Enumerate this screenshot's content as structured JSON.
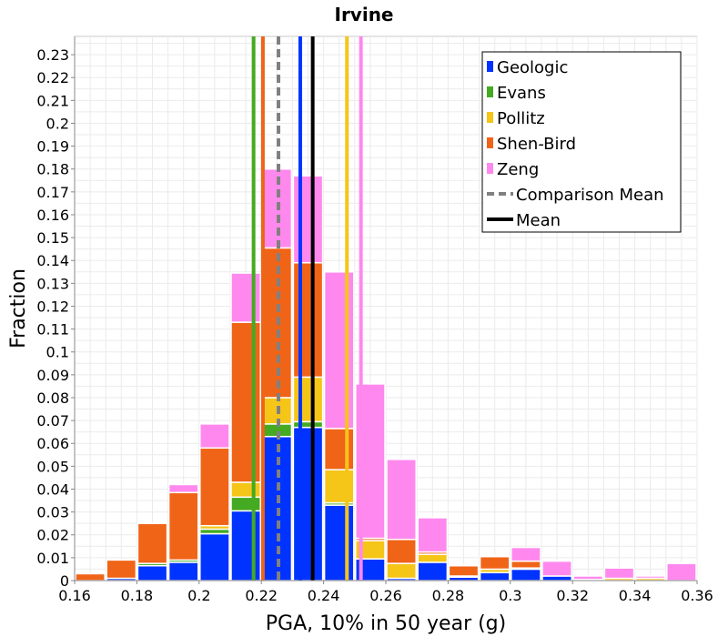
{
  "chart_data": {
    "type": "bar",
    "stacked": true,
    "title": "Irvine",
    "xlabel": "PGA, 10% in 50 year (g)",
    "ylabel": "Fraction",
    "xlim": [
      0.16,
      0.36
    ],
    "ylim": [
      0,
      0.238
    ],
    "grid": true,
    "legend_position": "top-right",
    "x_ticks": [
      "0.16",
      "0.18",
      "0.2",
      "0.22",
      "0.24",
      "0.26",
      "0.28",
      "0.3",
      "0.32",
      "0.34",
      "0.36"
    ],
    "y_ticks": [
      "0",
      "0.01",
      "0.02",
      "0.03",
      "0.04",
      "0.05",
      "0.06",
      "0.07",
      "0.08",
      "0.09",
      "0.1",
      "0.11",
      "0.12",
      "0.13",
      "0.14",
      "0.15",
      "0.16",
      "0.17",
      "0.18",
      "0.19",
      "0.2",
      "0.21",
      "0.22",
      "0.23"
    ],
    "bin_width": 0.01,
    "bin_centers": [
      0.165,
      0.175,
      0.185,
      0.195,
      0.205,
      0.215,
      0.225,
      0.235,
      0.245,
      0.255,
      0.265,
      0.275,
      0.285,
      0.295,
      0.305,
      0.315,
      0.325,
      0.335,
      0.345,
      0.355
    ],
    "series": [
      {
        "name": "Geologic",
        "color": "#0033ff",
        "values": [
          0,
          0.001,
          0.0065,
          0.008,
          0.0205,
          0.0305,
          0.063,
          0.067,
          0.033,
          0.0095,
          0.001,
          0.008,
          0.0015,
          0.0035,
          0.005,
          0.002,
          0,
          0,
          0,
          0
        ]
      },
      {
        "name": "Evans",
        "color": "#44aa22",
        "values": [
          0,
          0,
          0.001,
          0.001,
          0.002,
          0.006,
          0.0055,
          0.0025,
          0.001,
          0,
          0,
          0,
          0,
          0,
          0,
          0,
          0,
          0,
          0,
          0
        ]
      },
      {
        "name": "Pollitz",
        "color": "#f5c518",
        "values": [
          0,
          0,
          0,
          0,
          0.0015,
          0.0065,
          0.0115,
          0.0195,
          0.0145,
          0.008,
          0.0065,
          0.0035,
          0.0005,
          0.0015,
          0.0005,
          0,
          0.0005,
          0.001,
          0.001,
          0
        ],
        "_n": 0
      },
      {
        "name": "Shen-Bird",
        "color": "#f06418",
        "values": [
          0.003,
          0.008,
          0.0175,
          0.0295,
          0.034,
          0.07,
          0.0655,
          0.05,
          0.018,
          0.001,
          0.0105,
          0.001,
          0.0045,
          0.0055,
          0.003,
          0,
          0,
          0,
          0,
          0
        ]
      },
      {
        "name": "Zeng",
        "color": "#ff88ee",
        "values": [
          0,
          0,
          0,
          0.0035,
          0.0105,
          0.0215,
          0.0345,
          0.038,
          0.0685,
          0.0675,
          0.035,
          0.015,
          0.0005,
          0.0005,
          0.006,
          0.0065,
          0.0015,
          0.0045,
          0.001,
          0.0075
        ]
      }
    ],
    "vertical_lines": [
      {
        "name": "Evans",
        "x": 0.2175,
        "color": "#44aa22",
        "dashed": false
      },
      {
        "name": "Shen-Bird",
        "x": 0.2205,
        "color": "#f06418",
        "dashed": false
      },
      {
        "name": "Comparison Mean",
        "x": 0.2255,
        "color": "#808080",
        "dashed": true
      },
      {
        "name": "Geologic",
        "x": 0.2325,
        "color": "#0033ff",
        "dashed": false
      },
      {
        "name": "Mean",
        "x": 0.2365,
        "color": "#000000",
        "dashed": false
      },
      {
        "name": "Pollitz",
        "x": 0.2475,
        "color": "#f5c518",
        "dashed": false
      },
      {
        "name": "Zeng",
        "x": 0.252,
        "color": "#ff88ee",
        "dashed": false
      }
    ],
    "legend": [
      {
        "label": "Geologic",
        "color": "#0033ff",
        "style": "bar"
      },
      {
        "label": "Evans",
        "color": "#44aa22",
        "style": "bar"
      },
      {
        "label": "Pollitz",
        "color": "#f5c518",
        "style": "bar"
      },
      {
        "label": "Shen-Bird",
        "color": "#f06418",
        "style": "bar"
      },
      {
        "label": "Zeng",
        "color": "#ff88ee",
        "style": "bar"
      },
      {
        "label": "Comparison Mean",
        "color": "#808080",
        "style": "dash"
      },
      {
        "label": "Mean",
        "color": "#000000",
        "style": "line"
      }
    ]
  }
}
